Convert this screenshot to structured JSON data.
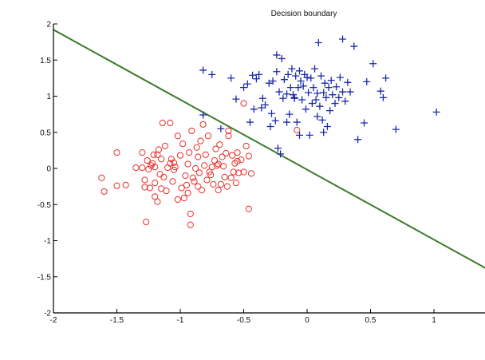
{
  "chart_data": {
    "type": "scatter",
    "title": "Decision boundary",
    "xlabel": "",
    "ylabel": "",
    "xlim": [
      -2,
      1.5
    ],
    "ylim": [
      -2,
      2
    ],
    "grid": false,
    "x_ticks": [
      -2,
      -1.5,
      -1,
      -0.5,
      0,
      0.5,
      1
    ],
    "x_tick_labels": [
      "-2",
      "-1.5",
      "-1",
      "-0.5",
      "0",
      "0.5",
      "1"
    ],
    "y_ticks": [
      2,
      1.5,
      1,
      0.5,
      0,
      -0.5,
      -1,
      -1.5,
      -2
    ],
    "y_tick_labels": [
      "2",
      "1.5",
      "1",
      "0.5",
      "0",
      "-0.5",
      "-1",
      "-1.5",
      "-2"
    ],
    "boundary": {
      "x": [
        -2,
        1.5
      ],
      "y": [
        1.92,
        -1.47
      ],
      "color": "#3a7a2a"
    },
    "series": [
      {
        "marker": "o",
        "color": "#e8302a",
        "points": [
          [
            -1.62,
            -0.13
          ],
          [
            -1.6,
            -0.32
          ],
          [
            -1.5,
            0.22
          ],
          [
            -1.5,
            -0.24
          ],
          [
            -1.43,
            -0.23
          ],
          [
            -1.35,
            0.01
          ],
          [
            -1.3,
            0.22
          ],
          [
            -1.28,
            -0.16
          ],
          [
            -1.28,
            -0.26
          ],
          [
            -1.27,
            -0.74
          ],
          [
            -1.26,
            0.11
          ],
          [
            -1.25,
            -0.01
          ],
          [
            -1.23,
            0.04
          ],
          [
            -1.22,
            0.07
          ],
          [
            -1.21,
            0.19
          ],
          [
            -1.2,
            -0.2
          ],
          [
            -1.2,
            -0.39
          ],
          [
            -1.2,
            0.02
          ],
          [
            -1.18,
            -0.46
          ],
          [
            -1.17,
            0.26
          ],
          [
            -1.16,
            -0.08
          ],
          [
            -1.15,
            0.13
          ],
          [
            -1.14,
            0.63
          ],
          [
            -1.13,
            -0.12
          ],
          [
            -1.12,
            0.31
          ],
          [
            -1.11,
            -0.31
          ],
          [
            -1.1,
            0.01
          ],
          [
            -1.08,
            0.07
          ],
          [
            -1.07,
            0.13
          ],
          [
            -1.06,
            -0.18
          ],
          [
            -1.05,
            -0.02
          ],
          [
            -1.04,
            0.02
          ],
          [
            -1.02,
            0.45
          ],
          [
            -1.02,
            -0.43
          ],
          [
            -1.0,
            0.18
          ],
          [
            -0.98,
            0.34
          ],
          [
            -0.97,
            -0.41
          ],
          [
            -0.96,
            -0.1
          ],
          [
            -0.95,
            -0.23
          ],
          [
            -0.94,
            0.06
          ],
          [
            -0.94,
            -0.34
          ],
          [
            -0.93,
            0.22
          ],
          [
            -0.92,
            -0.63
          ],
          [
            -0.91,
            0.52
          ],
          [
            -0.9,
            -0.13
          ],
          [
            -0.89,
            -0.18
          ],
          [
            -0.88,
            0.0
          ],
          [
            -0.87,
            0.29
          ],
          [
            -0.86,
            0.16
          ],
          [
            -0.85,
            -0.06
          ],
          [
            -0.84,
            0.38
          ],
          [
            -0.83,
            -0.3
          ],
          [
            -0.82,
            0.61
          ],
          [
            -0.81,
            0.04
          ],
          [
            -0.8,
            0.19
          ],
          [
            -0.79,
            -0.16
          ],
          [
            -0.78,
            0.45
          ],
          [
            -0.76,
            -0.09
          ],
          [
            -0.75,
            0.02
          ],
          [
            -0.74,
            -0.22
          ],
          [
            -0.73,
            0.11
          ],
          [
            -0.72,
            0.27
          ],
          [
            -0.71,
            0.04
          ],
          [
            -0.7,
            -0.3
          ],
          [
            -0.69,
            0.33
          ],
          [
            -0.68,
            -0.22
          ],
          [
            -0.67,
            0.16
          ],
          [
            -0.66,
            0.03
          ],
          [
            -0.65,
            -0.12
          ],
          [
            -0.64,
            0.21
          ],
          [
            -0.63,
            -0.25
          ],
          [
            -0.62,
            0.45
          ],
          [
            -0.6,
            -0.13
          ],
          [
            -0.59,
            0.18
          ],
          [
            -0.58,
            -0.05
          ],
          [
            -0.57,
            0.07
          ],
          [
            -0.56,
            -0.2
          ],
          [
            -0.55,
            0.22
          ],
          [
            -0.54,
            -0.06
          ],
          [
            -0.52,
            0.12
          ],
          [
            -0.5,
            0.9
          ],
          [
            -0.5,
            -0.05
          ],
          [
            -0.48,
            0.31
          ],
          [
            -0.46,
            0.17
          ],
          [
            -0.46,
            -0.56
          ],
          [
            -0.44,
            -0.07
          ],
          [
            -1.08,
            0.63
          ],
          [
            -0.92,
            -0.78
          ],
          [
            -0.62,
            0.52
          ],
          [
            -1.3,
            0.01
          ],
          [
            -1.15,
            -0.28
          ],
          [
            -0.99,
            -0.27
          ],
          [
            -0.77,
            -0.05
          ],
          [
            -1.24,
            -0.27
          ],
          [
            -0.86,
            -0.25
          ],
          [
            -0.08,
            0.53
          ],
          [
            -0.7,
            0.06
          ],
          [
            -1.18,
            0.19
          ],
          [
            -0.55,
            0.1
          ],
          [
            -1.05,
            0.08
          ]
        ]
      },
      {
        "marker": "+",
        "color": "#1a2aa8",
        "points": [
          [
            -0.82,
            0.74
          ],
          [
            -0.82,
            1.36
          ],
          [
            -0.75,
            1.3
          ],
          [
            -0.68,
            0.55
          ],
          [
            -0.6,
            1.25
          ],
          [
            -0.56,
            0.96
          ],
          [
            -0.5,
            1.12
          ],
          [
            -0.47,
            1.17
          ],
          [
            -0.45,
            0.64
          ],
          [
            -0.43,
            1.29
          ],
          [
            -0.42,
            0.82
          ],
          [
            -0.4,
            1.24
          ],
          [
            -0.38,
            1.3
          ],
          [
            -0.36,
            0.84
          ],
          [
            -0.35,
            0.97
          ],
          [
            -0.33,
            0.88
          ],
          [
            -0.3,
            1.18
          ],
          [
            -0.29,
            0.58
          ],
          [
            -0.28,
            0.76
          ],
          [
            -0.27,
            1.21
          ],
          [
            -0.25,
            0.66
          ],
          [
            -0.24,
            1.34
          ],
          [
            -0.23,
            0.28
          ],
          [
            -0.22,
            1.06
          ],
          [
            -0.21,
            0.2
          ],
          [
            -0.2,
            1.52
          ],
          [
            -0.19,
            0.97
          ],
          [
            -0.18,
            1.23
          ],
          [
            -0.16,
            1.03
          ],
          [
            -0.15,
            1.3
          ],
          [
            -0.14,
            0.75
          ],
          [
            -0.13,
            1.12
          ],
          [
            -0.12,
            1.38
          ],
          [
            -0.11,
            1.02
          ],
          [
            -0.1,
            0.97
          ],
          [
            -0.09,
            1.28
          ],
          [
            -0.08,
            0.64
          ],
          [
            -0.07,
            1.12
          ],
          [
            -0.06,
            1.35
          ],
          [
            -0.05,
            1.21
          ],
          [
            -0.04,
            0.95
          ],
          [
            -0.03,
            1.14
          ],
          [
            -0.02,
            1.3
          ],
          [
            -0.01,
            0.82
          ],
          [
            0.0,
            1.26
          ],
          [
            0.01,
            1.05
          ],
          [
            0.02,
            0.46
          ],
          [
            0.03,
            1.25
          ],
          [
            0.04,
            0.9
          ],
          [
            0.05,
            1.12
          ],
          [
            0.06,
            1.38
          ],
          [
            0.07,
            0.95
          ],
          [
            0.08,
            1.04
          ],
          [
            0.09,
            1.74
          ],
          [
            0.1,
            0.86
          ],
          [
            0.11,
            1.28
          ],
          [
            0.12,
            0.67
          ],
          [
            0.13,
            1.05
          ],
          [
            0.14,
            1.18
          ],
          [
            0.15,
            0.98
          ],
          [
            0.16,
            0.58
          ],
          [
            0.17,
            1.12
          ],
          [
            0.18,
            0.8
          ],
          [
            0.19,
            1.22
          ],
          [
            0.2,
            1.02
          ],
          [
            0.22,
            0.9
          ],
          [
            0.23,
            1.13
          ],
          [
            0.25,
            0.98
          ],
          [
            0.26,
            1.26
          ],
          [
            0.28,
            1.06
          ],
          [
            0.28,
            1.79
          ],
          [
            0.3,
            0.93
          ],
          [
            0.32,
            1.19
          ],
          [
            0.34,
            1.06
          ],
          [
            0.37,
            1.69
          ],
          [
            0.4,
            0.4
          ],
          [
            0.45,
            0.63
          ],
          [
            0.47,
            1.2
          ],
          [
            0.52,
            1.45
          ],
          [
            0.58,
            1.07
          ],
          [
            0.6,
            0.98
          ],
          [
            0.62,
            1.25
          ],
          [
            0.7,
            0.54
          ],
          [
            1.02,
            0.78
          ],
          [
            -0.06,
            0.46
          ],
          [
            -0.16,
            0.64
          ],
          [
            0.08,
            0.72
          ],
          [
            0.13,
            0.5
          ],
          [
            -0.24,
            1.57
          ],
          [
            -0.1,
            0.98
          ]
        ]
      }
    ]
  }
}
